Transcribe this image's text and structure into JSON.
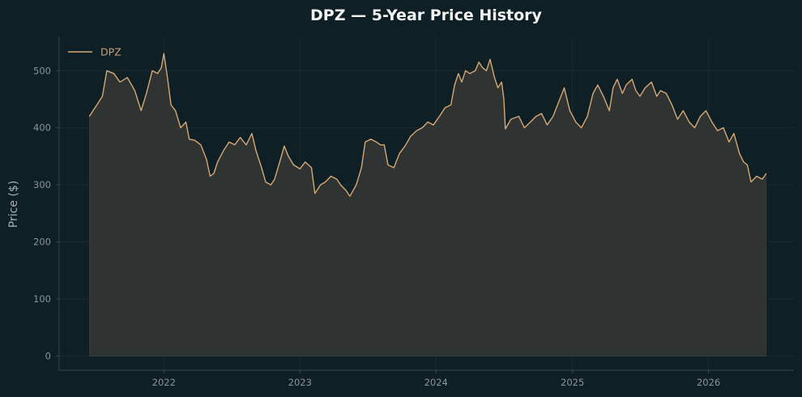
{
  "chart_data": {
    "type": "area",
    "title": "DPZ — 5-Year Price History",
    "xlabel": "",
    "ylabel": "Price ($)",
    "ylim": [
      -25,
      560
    ],
    "xlim": [
      "2021-03-26",
      "2026-08-18"
    ],
    "x_ticks": [
      "2022",
      "2023",
      "2024",
      "2025",
      "2026"
    ],
    "y_ticks": [
      "0",
      "100",
      "200",
      "300",
      "400",
      "500"
    ],
    "grid": true,
    "legend": {
      "position": "top-left"
    },
    "colors": {
      "background": "#0f1f26",
      "line": "#d6a874",
      "fill": "#2f3331",
      "grid": "#1c2b31",
      "spine": "#3a474c"
    },
    "series": [
      {
        "name": "DPZ",
        "points": [
          [
            "2021-06-15",
            420
          ],
          [
            "2021-07-05",
            440
          ],
          [
            "2021-07-20",
            455
          ],
          [
            "2021-08-01",
            500
          ],
          [
            "2021-08-20",
            495
          ],
          [
            "2021-09-05",
            480
          ],
          [
            "2021-09-25",
            488
          ],
          [
            "2021-10-15",
            465
          ],
          [
            "2021-11-01",
            430
          ],
          [
            "2021-11-15",
            460
          ],
          [
            "2021-12-01",
            500
          ],
          [
            "2021-12-15",
            495
          ],
          [
            "2021-12-25",
            505
          ],
          [
            "2022-01-01",
            530
          ],
          [
            "2022-01-10",
            490
          ],
          [
            "2022-01-20",
            440
          ],
          [
            "2022-02-01",
            430
          ],
          [
            "2022-02-15",
            400
          ],
          [
            "2022-03-01",
            410
          ],
          [
            "2022-03-10",
            380
          ],
          [
            "2022-03-25",
            378
          ],
          [
            "2022-04-10",
            370
          ],
          [
            "2022-04-25",
            345
          ],
          [
            "2022-05-05",
            315
          ],
          [
            "2022-05-15",
            320
          ],
          [
            "2022-05-25",
            340
          ],
          [
            "2022-06-10",
            360
          ],
          [
            "2022-06-25",
            375
          ],
          [
            "2022-07-10",
            370
          ],
          [
            "2022-07-25",
            383
          ],
          [
            "2022-08-10",
            370
          ],
          [
            "2022-08-25",
            390
          ],
          [
            "2022-09-05",
            360
          ],
          [
            "2022-09-20",
            330
          ],
          [
            "2022-10-01",
            305
          ],
          [
            "2022-10-15",
            300
          ],
          [
            "2022-10-25",
            310
          ],
          [
            "2022-11-10",
            345
          ],
          [
            "2022-11-20",
            368
          ],
          [
            "2022-12-01",
            350
          ],
          [
            "2022-12-15",
            335
          ],
          [
            "2023-01-01",
            328
          ],
          [
            "2023-01-15",
            340
          ],
          [
            "2023-02-01",
            330
          ],
          [
            "2023-02-10",
            285
          ],
          [
            "2023-02-25",
            300
          ],
          [
            "2023-03-10",
            305
          ],
          [
            "2023-03-25",
            315
          ],
          [
            "2023-04-10",
            310
          ],
          [
            "2023-04-20",
            300
          ],
          [
            "2023-05-05",
            290
          ],
          [
            "2023-05-15",
            280
          ],
          [
            "2023-06-01",
            300
          ],
          [
            "2023-06-15",
            330
          ],
          [
            "2023-06-25",
            375
          ],
          [
            "2023-07-10",
            380
          ],
          [
            "2023-07-25",
            375
          ],
          [
            "2023-08-05",
            370
          ],
          [
            "2023-08-15",
            370
          ],
          [
            "2023-08-25",
            335
          ],
          [
            "2023-09-10",
            330
          ],
          [
            "2023-09-25",
            355
          ],
          [
            "2023-10-10",
            368
          ],
          [
            "2023-10-25",
            385
          ],
          [
            "2023-11-10",
            395
          ],
          [
            "2023-11-25",
            400
          ],
          [
            "2023-12-10",
            410
          ],
          [
            "2023-12-25",
            405
          ],
          [
            "2024-01-10",
            420
          ],
          [
            "2024-01-25",
            435
          ],
          [
            "2024-02-10",
            440
          ],
          [
            "2024-02-20",
            475
          ],
          [
            "2024-03-01",
            495
          ],
          [
            "2024-03-10",
            480
          ],
          [
            "2024-03-20",
            500
          ],
          [
            "2024-04-01",
            495
          ],
          [
            "2024-04-15",
            500
          ],
          [
            "2024-04-25",
            515
          ],
          [
            "2024-05-05",
            505
          ],
          [
            "2024-05-15",
            500
          ],
          [
            "2024-05-25",
            520
          ],
          [
            "2024-06-05",
            490
          ],
          [
            "2024-06-15",
            470
          ],
          [
            "2024-06-25",
            480
          ],
          [
            "2024-07-01",
            450
          ],
          [
            "2024-07-05",
            398
          ],
          [
            "2024-07-20",
            415
          ],
          [
            "2024-08-10",
            420
          ],
          [
            "2024-08-25",
            400
          ],
          [
            "2024-09-10",
            410
          ],
          [
            "2024-09-25",
            420
          ],
          [
            "2024-10-10",
            425
          ],
          [
            "2024-10-25",
            405
          ],
          [
            "2024-11-10",
            420
          ],
          [
            "2024-11-25",
            445
          ],
          [
            "2024-12-10",
            470
          ],
          [
            "2024-12-25",
            430
          ],
          [
            "2025-01-10",
            410
          ],
          [
            "2025-01-25",
            400
          ],
          [
            "2025-02-10",
            420
          ],
          [
            "2025-02-25",
            460
          ],
          [
            "2025-03-10",
            475
          ],
          [
            "2025-03-25",
            455
          ],
          [
            "2025-04-10",
            430
          ],
          [
            "2025-04-20",
            470
          ],
          [
            "2025-05-01",
            485
          ],
          [
            "2025-05-15",
            460
          ],
          [
            "2025-05-25",
            475
          ],
          [
            "2025-06-10",
            485
          ],
          [
            "2025-06-20",
            465
          ],
          [
            "2025-07-01",
            455
          ],
          [
            "2025-07-15",
            470
          ],
          [
            "2025-08-01",
            480
          ],
          [
            "2025-08-15",
            455
          ],
          [
            "2025-08-25",
            465
          ],
          [
            "2025-09-10",
            460
          ],
          [
            "2025-09-25",
            440
          ],
          [
            "2025-10-10",
            415
          ],
          [
            "2025-10-25",
            430
          ],
          [
            "2025-11-10",
            410
          ],
          [
            "2025-11-25",
            400
          ],
          [
            "2025-12-10",
            420
          ],
          [
            "2025-12-25",
            430
          ],
          [
            "2026-01-10",
            410
          ],
          [
            "2026-01-25",
            395
          ],
          [
            "2026-02-10",
            400
          ],
          [
            "2026-02-25",
            375
          ],
          [
            "2026-03-10",
            390
          ],
          [
            "2026-03-25",
            355
          ],
          [
            "2026-04-05",
            340
          ],
          [
            "2026-04-15",
            335
          ],
          [
            "2026-04-25",
            305
          ],
          [
            "2026-05-10",
            315
          ],
          [
            "2026-05-25",
            310
          ],
          [
            "2026-06-05",
            320
          ]
        ]
      }
    ]
  }
}
